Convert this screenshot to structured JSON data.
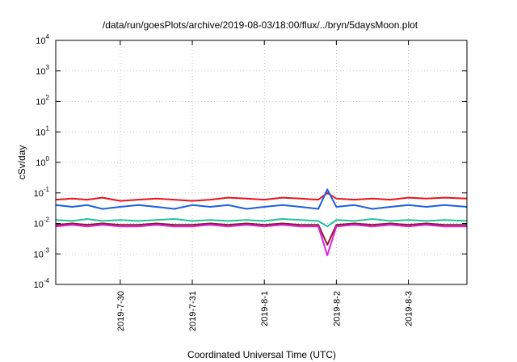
{
  "chart_data": {
    "type": "line",
    "title": "/data/run/goesPlots/archive/2019-08-03/18:00/flux/../bryn/5daysMoon.plot",
    "xlabel": "Coordinated Universal Time (UTC)",
    "ylabel": "cSv/day",
    "yscale": "log",
    "ylim": [
      0.0001,
      10000
    ],
    "xlim": [
      "2019-07-29T02:30",
      "2019-08-03T19:30"
    ],
    "grid": true,
    "legend": "none",
    "y_ticks": [
      {
        "base": "10",
        "exp": "-4"
      },
      {
        "base": "10",
        "exp": "-3"
      },
      {
        "base": "10",
        "exp": "-2"
      },
      {
        "base": "10",
        "exp": "-1"
      },
      {
        "base": "10",
        "exp": "0"
      },
      {
        "base": "10",
        "exp": "1"
      },
      {
        "base": "10",
        "exp": "2"
      },
      {
        "base": "10",
        "exp": "3"
      },
      {
        "base": "10",
        "exp": "4"
      }
    ],
    "x_ticks": [
      {
        "label": "2019-7-30",
        "date": "2019-07-30T00:00"
      },
      {
        "label": "2019-7-31",
        "date": "2019-07-31T00:00"
      },
      {
        "label": "2019-8-1",
        "date": "2019-08-01T00:00"
      },
      {
        "label": "2019-8-2",
        "date": "2019-08-02T00:00"
      },
      {
        "label": "2019-8-3",
        "date": "2019-08-03T00:00"
      }
    ],
    "series": [
      {
        "color": "#e8141c",
        "x": [
          "2019-07-29T02:30",
          "2019-07-29T08:00",
          "2019-07-29T13:00",
          "2019-07-29T18:00",
          "2019-07-30T00:00",
          "2019-07-30T06:00",
          "2019-07-30T12:00",
          "2019-07-30T18:00",
          "2019-07-31T00:00",
          "2019-07-31T06:00",
          "2019-07-31T12:00",
          "2019-07-31T18:00",
          "2019-08-01T00:00",
          "2019-08-01T06:00",
          "2019-08-01T12:00",
          "2019-08-01T18:00",
          "2019-08-01T21:00",
          "2019-08-02T00:00",
          "2019-08-02T06:00",
          "2019-08-02T12:00",
          "2019-08-02T18:00",
          "2019-08-03T00:00",
          "2019-08-03T06:00",
          "2019-08-03T12:00",
          "2019-08-03T19:30"
        ],
        "values": [
          0.06,
          0.065,
          0.06,
          0.07,
          0.055,
          0.06,
          0.065,
          0.06,
          0.055,
          0.06,
          0.07,
          0.065,
          0.06,
          0.07,
          0.065,
          0.06,
          0.1,
          0.065,
          0.06,
          0.065,
          0.06,
          0.07,
          0.065,
          0.07,
          0.065
        ]
      },
      {
        "color": "#8b1a2a",
        "x": [
          "2019-07-29T02:30",
          "2019-07-29T08:00",
          "2019-07-29T13:00",
          "2019-07-29T18:00",
          "2019-07-30T00:00",
          "2019-07-30T06:00",
          "2019-07-30T12:00",
          "2019-07-30T18:00",
          "2019-07-31T00:00",
          "2019-07-31T06:00",
          "2019-07-31T12:00",
          "2019-07-31T18:00",
          "2019-08-01T00:00",
          "2019-08-01T06:00",
          "2019-08-01T12:00",
          "2019-08-01T18:00",
          "2019-08-01T21:00",
          "2019-08-02T00:00",
          "2019-08-02T06:00",
          "2019-08-02T12:00",
          "2019-08-02T18:00",
          "2019-08-03T00:00",
          "2019-08-03T06:00",
          "2019-08-03T12:00",
          "2019-08-03T19:30"
        ],
        "values": [
          0.009,
          0.01,
          0.009,
          0.01,
          0.009,
          0.009,
          0.01,
          0.009,
          0.009,
          0.01,
          0.009,
          0.01,
          0.009,
          0.01,
          0.009,
          0.009,
          0.002,
          0.009,
          0.01,
          0.009,
          0.01,
          0.009,
          0.01,
          0.009,
          0.009
        ]
      },
      {
        "color": "#e020e0",
        "x": [
          "2019-07-29T02:30",
          "2019-07-29T08:00",
          "2019-07-29T13:00",
          "2019-07-29T18:00",
          "2019-07-30T00:00",
          "2019-07-30T06:00",
          "2019-07-30T12:00",
          "2019-07-30T18:00",
          "2019-07-31T00:00",
          "2019-07-31T06:00",
          "2019-07-31T12:00",
          "2019-07-31T18:00",
          "2019-08-01T00:00",
          "2019-08-01T06:00",
          "2019-08-01T12:00",
          "2019-08-01T18:00",
          "2019-08-01T21:00",
          "2019-08-02T00:00",
          "2019-08-02T06:00",
          "2019-08-02T12:00",
          "2019-08-02T18:00",
          "2019-08-03T00:00",
          "2019-08-03T06:00",
          "2019-08-03T12:00",
          "2019-08-03T19:30"
        ],
        "values": [
          0.008,
          0.009,
          0.008,
          0.009,
          0.008,
          0.008,
          0.009,
          0.008,
          0.008,
          0.009,
          0.008,
          0.009,
          0.008,
          0.009,
          0.008,
          0.008,
          0.0009,
          0.008,
          0.009,
          0.008,
          0.009,
          0.008,
          0.009,
          0.008,
          0.008
        ]
      },
      {
        "color": "#20c0a0",
        "x": [
          "2019-07-29T02:30",
          "2019-07-29T08:00",
          "2019-07-29T13:00",
          "2019-07-29T18:00",
          "2019-07-30T00:00",
          "2019-07-30T06:00",
          "2019-07-30T12:00",
          "2019-07-30T18:00",
          "2019-07-31T00:00",
          "2019-07-31T06:00",
          "2019-07-31T12:00",
          "2019-07-31T18:00",
          "2019-08-01T00:00",
          "2019-08-01T06:00",
          "2019-08-01T12:00",
          "2019-08-01T18:00",
          "2019-08-01T21:00",
          "2019-08-02T00:00",
          "2019-08-02T06:00",
          "2019-08-02T12:00",
          "2019-08-02T18:00",
          "2019-08-03T00:00",
          "2019-08-03T06:00",
          "2019-08-03T12:00",
          "2019-08-03T19:30"
        ],
        "values": [
          0.013,
          0.012,
          0.014,
          0.012,
          0.013,
          0.012,
          0.013,
          0.014,
          0.012,
          0.013,
          0.012,
          0.013,
          0.012,
          0.014,
          0.013,
          0.012,
          0.008,
          0.013,
          0.012,
          0.014,
          0.012,
          0.013,
          0.012,
          0.013,
          0.012
        ]
      },
      {
        "color": "#1a60e0",
        "x": [
          "2019-07-29T02:30",
          "2019-07-29T08:00",
          "2019-07-29T13:00",
          "2019-07-29T18:00",
          "2019-07-30T00:00",
          "2019-07-30T06:00",
          "2019-07-30T12:00",
          "2019-07-30T18:00",
          "2019-07-31T00:00",
          "2019-07-31T06:00",
          "2019-07-31T12:00",
          "2019-07-31T18:00",
          "2019-08-01T00:00",
          "2019-08-01T06:00",
          "2019-08-01T12:00",
          "2019-08-01T18:00",
          "2019-08-01T21:00",
          "2019-08-02T00:00",
          "2019-08-02T06:00",
          "2019-08-02T12:00",
          "2019-08-02T18:00",
          "2019-08-03T00:00",
          "2019-08-03T06:00",
          "2019-08-03T12:00",
          "2019-08-03T19:30"
        ],
        "values": [
          0.04,
          0.035,
          0.04,
          0.03,
          0.035,
          0.04,
          0.035,
          0.03,
          0.04,
          0.035,
          0.04,
          0.03,
          0.035,
          0.04,
          0.035,
          0.03,
          0.13,
          0.035,
          0.04,
          0.03,
          0.035,
          0.04,
          0.035,
          0.04,
          0.035
        ]
      }
    ]
  }
}
